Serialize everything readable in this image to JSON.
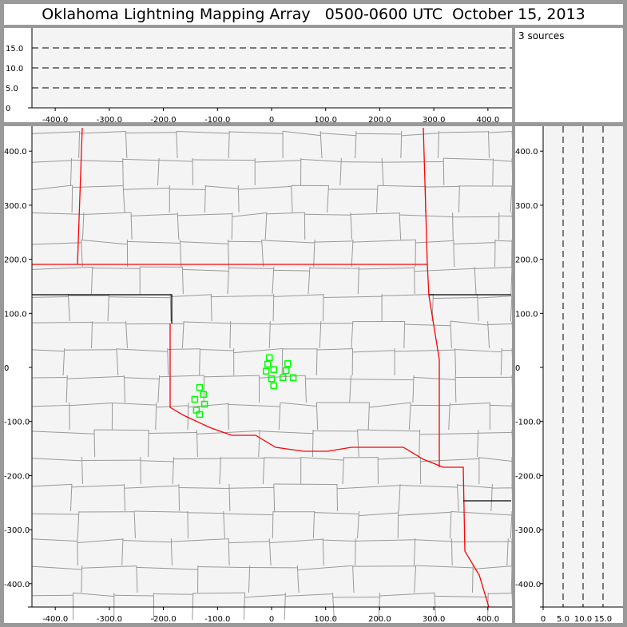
{
  "title": "Oklahoma Lightning Mapping Array   0500-0600 UTC  October 15, 2013",
  "info": {
    "source_count": "3 sources"
  },
  "colors": {
    "state_border": "#ff0000",
    "county_border": "#999999",
    "sources": "#00ff00",
    "plot_bg": "#f4f4f4"
  },
  "chart_data": [
    {
      "type": "scatter",
      "name_panel": "altitude-vs-east-west",
      "xlim": [
        -443,
        443
      ],
      "ylim": [
        0,
        20
      ],
      "xticks": [
        "-400.0",
        "-300.0",
        "-200.0",
        "-100.0",
        "0",
        "100.0",
        "200.0",
        "300.0",
        "400.0"
      ],
      "xtick_values": [
        -400,
        -300,
        -200,
        -100,
        0,
        100,
        200,
        300,
        400
      ],
      "yticks": [
        "0",
        "5.0",
        "10.0",
        "15.0"
      ],
      "ytick_values": [
        0,
        5,
        10,
        15
      ],
      "grid": "dashed at 5, 10, 15",
      "points": []
    },
    {
      "type": "scatter",
      "name_panel": "plan-view-map",
      "xlim": [
        -443,
        443
      ],
      "ylim": [
        -443,
        443
      ],
      "xticks": [
        "-400.0",
        "-300.0",
        "-200.0",
        "-100.0",
        "0",
        "100.0",
        "200.0",
        "300.0",
        "400.0"
      ],
      "xtick_values": [
        -400,
        -300,
        -200,
        -100,
        0,
        100,
        200,
        300,
        400
      ],
      "yticks": [
        "400.0",
        "300.0",
        "200.0",
        "100.0",
        "0",
        "-100.0",
        "-200.0",
        "-300.0",
        "-400.0"
      ],
      "ytick_values": [
        400,
        300,
        200,
        100,
        0,
        -100,
        -200,
        -300,
        -400
      ],
      "points": [
        [
          -4,
          18
        ],
        [
          -7,
          6
        ],
        [
          30,
          7
        ],
        [
          -10,
          -7
        ],
        [
          4,
          -4
        ],
        [
          27,
          -6
        ],
        [
          0,
          -21
        ],
        [
          21,
          -19
        ],
        [
          40,
          -19
        ],
        [
          4,
          -34
        ],
        [
          -133,
          -37
        ],
        [
          -126,
          -50
        ],
        [
          -142,
          -59
        ],
        [
          -124,
          -68
        ],
        [
          -139,
          -79
        ],
        [
          -133,
          -87
        ]
      ]
    },
    {
      "type": "scatter",
      "name_panel": "north-south-vs-altitude",
      "xlim": [
        0,
        20
      ],
      "ylim": [
        -443,
        443
      ],
      "xticks": [
        "0",
        "5.0",
        "10.0",
        "15.0"
      ],
      "xtick_values": [
        0,
        5,
        10,
        15
      ],
      "yticks": [
        "400.0",
        "300.0",
        "200.0",
        "100.0",
        "0",
        "-100.0",
        "-200.0",
        "-300.0",
        "-400.0"
      ],
      "ytick_values": [
        400,
        300,
        200,
        100,
        0,
        -100,
        -200,
        -300,
        -400
      ],
      "grid": "dashed at 5, 10, 15",
      "points": []
    }
  ]
}
